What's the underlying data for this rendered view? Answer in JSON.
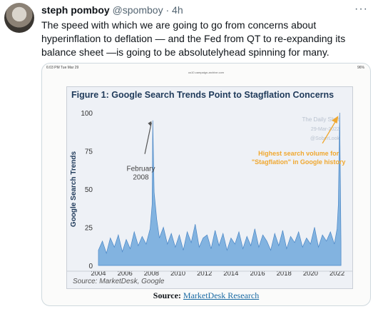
{
  "tweet": {
    "name": "steph pomboy",
    "handle": "@spomboy",
    "separator": "·",
    "time": "4h",
    "more_icon": "ellipsis-icon",
    "text": "The speed with which we are going to go from concerns about hyperinflation to deflation — and the Fed from QT to re-expanding its balance sheet —is going to be absolutelyhead spinning for many."
  },
  "media": {
    "status_left": "6:03 PM  Tue Mar 29",
    "status_url": "us10.campaign-archive.com",
    "status_right": "96%",
    "source_label": "Source:",
    "source_link": "MarketDesk Research"
  },
  "chart_data": {
    "type": "area",
    "title": "Figure 1: Google Search Trends Point to Stagflation Concerns",
    "ylabel": "Google Search Trends",
    "xlabel": "",
    "ylim": [
      0,
      100
    ],
    "xlim": [
      2004,
      2022.4
    ],
    "yticks": [
      0,
      25,
      50,
      75,
      100
    ],
    "xticks": [
      2004,
      2006,
      2008,
      2010,
      2012,
      2014,
      2016,
      2018,
      2020,
      2022
    ],
    "color": "#6fa8dc",
    "annotations": [
      {
        "text_lines": [
          "February",
          "2008"
        ],
        "x": 2008.1,
        "y": 95
      },
      {
        "text_lines": [
          "Highest search volume for",
          "\"Stagflation\" in Google history"
        ],
        "x": 2022.2,
        "y": 100
      }
    ],
    "watermark": [
      "The Daily Shot",
      "29-Mar-2022",
      "@SoberLook"
    ],
    "source_note": "Source: MarketDesk, Google",
    "x": [
      2004.0,
      2004.3,
      2004.6,
      2004.9,
      2005.2,
      2005.5,
      2005.8,
      2006.1,
      2006.4,
      2006.7,
      2007.0,
      2007.3,
      2007.6,
      2007.9,
      2008.05,
      2008.1,
      2008.2,
      2008.4,
      2008.6,
      2008.9,
      2009.2,
      2009.5,
      2009.8,
      2010.1,
      2010.4,
      2010.7,
      2011.0,
      2011.3,
      2011.6,
      2011.9,
      2012.2,
      2012.5,
      2012.8,
      2013.1,
      2013.4,
      2013.7,
      2014.0,
      2014.3,
      2014.6,
      2014.9,
      2015.2,
      2015.5,
      2015.8,
      2016.1,
      2016.4,
      2016.7,
      2017.0,
      2017.3,
      2017.6,
      2017.9,
      2018.2,
      2018.5,
      2018.8,
      2019.1,
      2019.4,
      2019.7,
      2020.0,
      2020.3,
      2020.6,
      2020.9,
      2021.2,
      2021.5,
      2021.8,
      2022.0,
      2022.1,
      2022.2,
      2022.3
    ],
    "y": [
      10,
      16,
      8,
      18,
      12,
      20,
      9,
      17,
      11,
      22,
      13,
      19,
      14,
      24,
      40,
      95,
      48,
      30,
      18,
      25,
      14,
      21,
      12,
      20,
      10,
      22,
      15,
      27,
      12,
      18,
      20,
      11,
      23,
      13,
      21,
      10,
      18,
      14,
      22,
      11,
      19,
      13,
      24,
      12,
      20,
      16,
      10,
      21,
      13,
      23,
      11,
      19,
      15,
      22,
      12,
      18,
      14,
      25,
      12,
      20,
      16,
      22,
      14,
      24,
      40,
      100,
      15
    ]
  }
}
